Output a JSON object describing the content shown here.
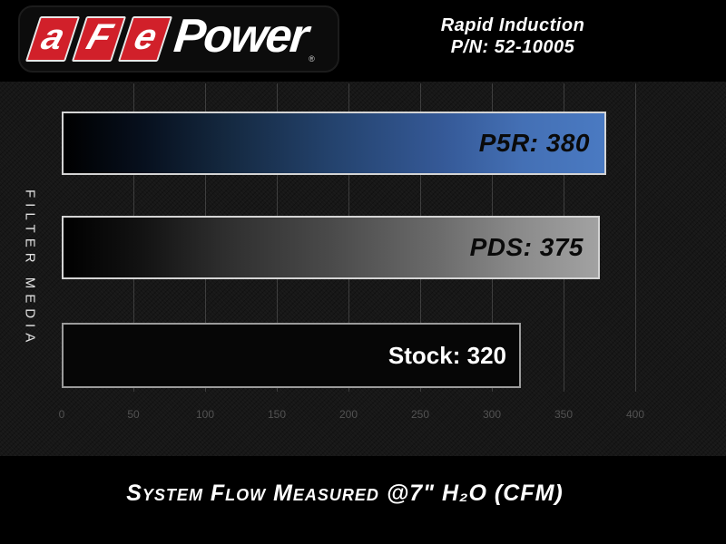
{
  "header": {
    "logo": {
      "letters": [
        "a",
        "F",
        "e"
      ],
      "word": "Power",
      "trademark": "®"
    },
    "product_line1": "Rapid Induction",
    "product_line2": "P/N: 52-10005"
  },
  "chart_data": {
    "type": "bar",
    "orientation": "horizontal",
    "categories": [
      "P5R",
      "PDS",
      "Stock"
    ],
    "values": [
      380,
      375,
      320
    ],
    "bar_labels": [
      "P5R: 380",
      "PDS: 375",
      "Stock: 320"
    ],
    "ylabel": "FILTER MEDIA",
    "xlabel": "System Flow Measured @7\" H₂O (CFM)",
    "xlim": [
      0,
      400
    ],
    "xticks": [
      0,
      50,
      100,
      150,
      200,
      250,
      300,
      350,
      400
    ],
    "grid": "vertical",
    "legend": "none",
    "colors": {
      "p5r_gradient_end": "#4a7ac2",
      "pds_gradient_end": "#a2a2a2",
      "gradient_start": "#000000",
      "stock_fill": "#060606",
      "plot_background": "#171717",
      "logo_red": "#d1202a"
    }
  }
}
